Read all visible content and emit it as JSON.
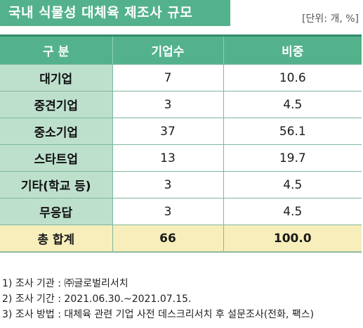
{
  "title": "국내 식물성 대체육 제조사 규모",
  "unit_note": "[단위: 개, %]",
  "table": {
    "headers": [
      "구 분",
      "기업수",
      "비중"
    ],
    "rows": [
      {
        "label": "대기업",
        "count": "7",
        "share": "10.6"
      },
      {
        "label": "중견기업",
        "count": "3",
        "share": "4.5"
      },
      {
        "label": "중소기업",
        "count": "37",
        "share": "56.1"
      },
      {
        "label": "스타트업",
        "count": "13",
        "share": "19.7"
      },
      {
        "label": "기타(학교 등)",
        "count": "3",
        "share": "4.5"
      },
      {
        "label": "무응답",
        "count": "3",
        "share": "4.5"
      }
    ],
    "total": {
      "label": "총 합계",
      "count": "66",
      "share": "100.0"
    }
  },
  "notes": [
    "1) 조사 기관 : ㈜글로벌리서치",
    "2) 조사 기간 : 2021.06.30.~2021.07.15.",
    "3) 조사 방법 : 대체육 관련 기업 사전 데스크리서치 후 설문조사(전화, 팩스)"
  ],
  "colors": {
    "header_green": "#53b28c",
    "label_green": "#bde0cd",
    "total_yellow": "#f8eebb"
  }
}
